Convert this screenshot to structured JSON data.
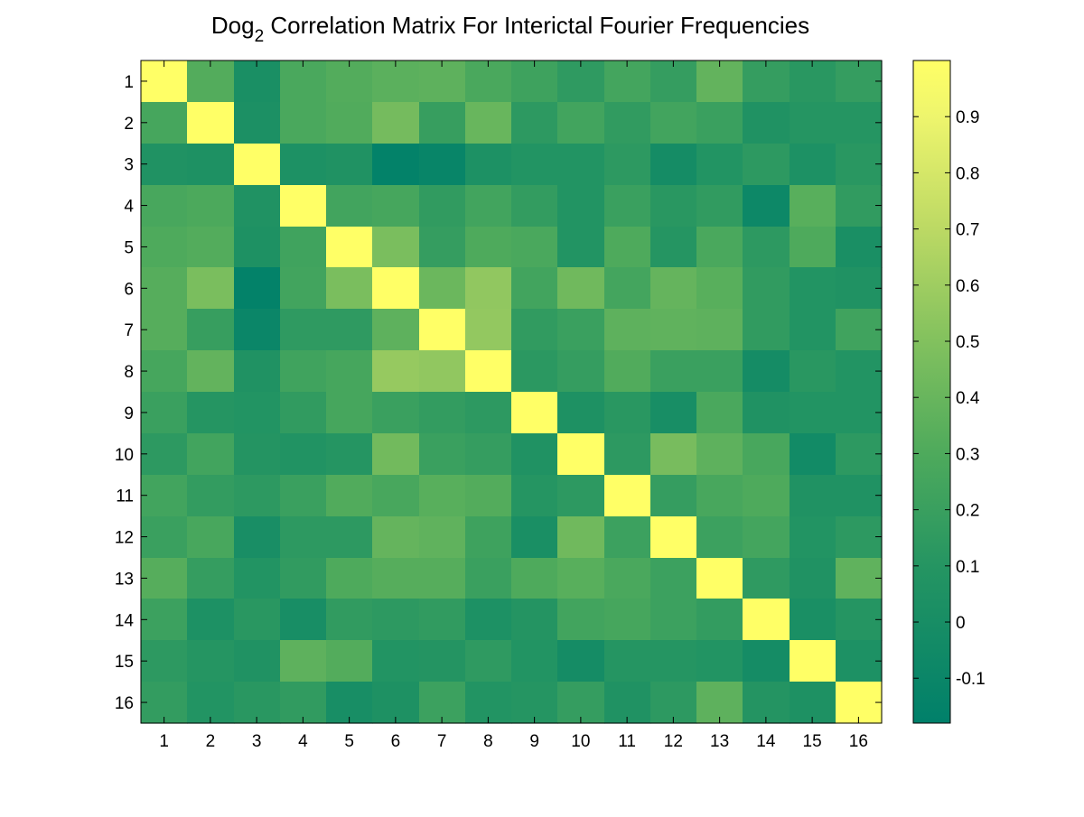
{
  "chart_data": {
    "type": "heatmap",
    "title": {
      "prefix": "Dog",
      "subscript": "2",
      "suffix": " Correlation Matrix For Interictal Fourier Frequencies"
    },
    "xlabel": "",
    "ylabel": "",
    "x_labels": [
      "1",
      "2",
      "3",
      "4",
      "5",
      "6",
      "7",
      "8",
      "9",
      "10",
      "11",
      "12",
      "13",
      "14",
      "15",
      "16"
    ],
    "y_labels": [
      "1",
      "2",
      "3",
      "4",
      "5",
      "6",
      "7",
      "8",
      "9",
      "10",
      "11",
      "12",
      "13",
      "14",
      "15",
      "16"
    ],
    "colorbar": {
      "range": [
        -0.18,
        1.0
      ],
      "tick_values": [
        -0.1,
        0,
        0.1,
        0.2,
        0.3,
        0.4,
        0.5,
        0.6,
        0.7,
        0.8,
        0.9
      ],
      "tick_labels": [
        "-0.1",
        "0",
        "0.1",
        "0.2",
        "0.3",
        "0.4",
        "0.5",
        "0.6",
        "0.7",
        "0.8",
        "0.9"
      ],
      "colormap": [
        {
          "value": -0.18,
          "color": "#00806a"
        },
        {
          "value": 0.1,
          "color": "#259562"
        },
        {
          "value": 0.3,
          "color": "#4eaa5c"
        },
        {
          "value": 0.5,
          "color": "#82c15e"
        },
        {
          "value": 0.7,
          "color": "#bcd964"
        },
        {
          "value": 0.9,
          "color": "#eef56d"
        },
        {
          "value": 1.0,
          "color": "#ffff66"
        }
      ]
    },
    "grid": false,
    "legend": "none",
    "matrix": [
      [
        1.0,
        0.32,
        0.02,
        0.28,
        0.32,
        0.35,
        0.36,
        0.28,
        0.22,
        0.15,
        0.25,
        0.18,
        0.38,
        0.18,
        0.12,
        0.18
      ],
      [
        0.26,
        1.0,
        0.03,
        0.28,
        0.31,
        0.45,
        0.19,
        0.4,
        0.14,
        0.24,
        0.16,
        0.24,
        0.2,
        0.06,
        0.1,
        0.1
      ],
      [
        0.06,
        0.05,
        1.0,
        0.04,
        0.06,
        -0.16,
        -0.12,
        0.04,
        0.08,
        0.08,
        0.14,
        -0.02,
        0.08,
        0.14,
        0.04,
        0.12
      ],
      [
        0.27,
        0.29,
        0.06,
        1.0,
        0.24,
        0.26,
        0.16,
        0.24,
        0.17,
        0.08,
        0.2,
        0.12,
        0.16,
        -0.08,
        0.34,
        0.16
      ],
      [
        0.3,
        0.32,
        0.05,
        0.23,
        1.0,
        0.47,
        0.18,
        0.3,
        0.28,
        0.08,
        0.3,
        0.1,
        0.28,
        0.14,
        0.3,
        0.02
      ],
      [
        0.33,
        0.47,
        -0.16,
        0.24,
        0.47,
        1.0,
        0.41,
        0.55,
        0.24,
        0.43,
        0.25,
        0.39,
        0.34,
        0.16,
        0.08,
        0.06
      ],
      [
        0.33,
        0.19,
        -0.1,
        0.15,
        0.15,
        0.36,
        1.0,
        0.56,
        0.16,
        0.2,
        0.36,
        0.37,
        0.36,
        0.16,
        0.08,
        0.23
      ],
      [
        0.26,
        0.38,
        0.06,
        0.23,
        0.26,
        0.57,
        0.55,
        1.0,
        0.13,
        0.18,
        0.31,
        0.2,
        0.2,
        -0.02,
        0.12,
        0.08
      ],
      [
        0.2,
        0.1,
        0.08,
        0.16,
        0.26,
        0.2,
        0.17,
        0.14,
        1.0,
        0.05,
        0.12,
        0.0,
        0.28,
        0.06,
        0.08,
        0.08
      ],
      [
        0.14,
        0.24,
        0.09,
        0.07,
        0.1,
        0.44,
        0.2,
        0.18,
        0.06,
        1.0,
        0.14,
        0.46,
        0.36,
        0.27,
        -0.04,
        0.14
      ],
      [
        0.24,
        0.17,
        0.14,
        0.2,
        0.31,
        0.27,
        0.34,
        0.32,
        0.1,
        0.14,
        1.0,
        0.18,
        0.27,
        0.3,
        0.06,
        0.06
      ],
      [
        0.2,
        0.27,
        0.01,
        0.14,
        0.14,
        0.39,
        0.37,
        0.22,
        0.02,
        0.43,
        0.21,
        1.0,
        0.21,
        0.25,
        0.08,
        0.14
      ],
      [
        0.33,
        0.18,
        0.08,
        0.16,
        0.3,
        0.33,
        0.33,
        0.2,
        0.3,
        0.34,
        0.28,
        0.21,
        1.0,
        0.15,
        0.06,
        0.37
      ],
      [
        0.21,
        0.04,
        0.12,
        0.0,
        0.16,
        0.14,
        0.16,
        0.04,
        0.09,
        0.24,
        0.26,
        0.21,
        0.17,
        1.0,
        0.02,
        0.1
      ],
      [
        0.14,
        0.1,
        0.06,
        0.36,
        0.32,
        0.08,
        0.09,
        0.15,
        0.08,
        -0.02,
        0.1,
        0.1,
        0.08,
        -0.02,
        1.0,
        0.04
      ],
      [
        0.17,
        0.08,
        0.12,
        0.16,
        0.0,
        0.05,
        0.21,
        0.08,
        0.1,
        0.18,
        0.06,
        0.14,
        0.36,
        0.09,
        0.05,
        1.0
      ]
    ]
  }
}
